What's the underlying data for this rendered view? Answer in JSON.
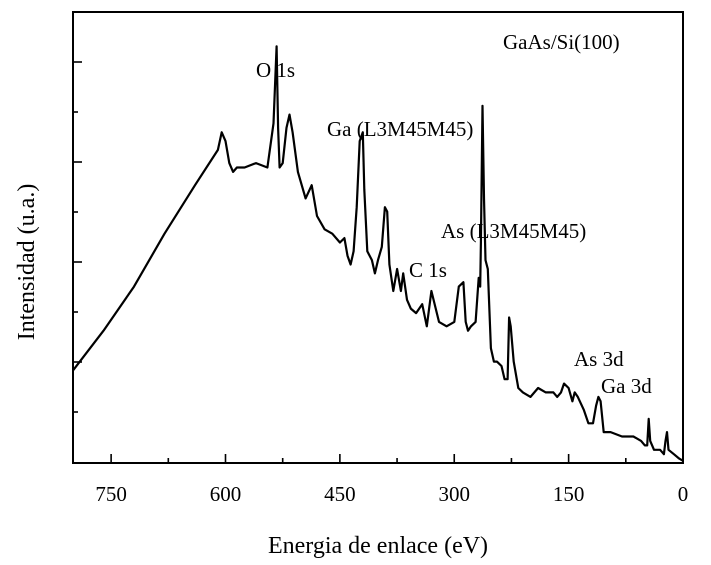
{
  "chart_data": {
    "type": "line",
    "title": "",
    "xlabel": "Energia de enlace (eV)",
    "ylabel": "Intensidad (u.a.)",
    "xlim": [
      800,
      0
    ],
    "ylim": [
      0,
      1
    ],
    "x_reversed": true,
    "x_ticks": [
      "750",
      "600",
      "450",
      "300",
      "150",
      "0"
    ],
    "y_tick_labels_shown": false,
    "sample_label": "GaAs/Si(100)",
    "peak_labels": {
      "O": "O 1s",
      "GaAuger": "Ga (L3M45M45)",
      "C": "C 1s",
      "AsAuger": "As (L3M45M45)",
      "As3d": "As 3d",
      "Ga3d": "Ga 3d"
    },
    "series": [
      {
        "x": [
          800,
          760,
          720,
          680,
          640,
          610,
          605,
          600,
          595,
          590,
          585,
          575,
          560,
          545,
          537,
          533,
          531,
          529,
          525,
          520,
          516,
          512,
          505,
          495,
          487,
          480,
          470,
          460,
          450,
          444,
          440,
          436,
          432,
          428,
          424,
          420,
          418,
          414,
          408,
          404,
          400,
          395,
          391,
          388,
          385,
          380,
          375,
          370,
          367,
          362,
          357,
          350,
          342,
          336,
          330,
          320,
          310,
          300,
          294,
          288,
          285,
          282,
          278,
          272,
          268,
          266,
          265,
          263,
          261,
          259,
          256,
          252,
          248,
          244,
          238,
          234,
          230,
          228,
          226,
          222,
          216,
          210,
          200,
          190,
          180,
          170,
          165,
          160,
          156,
          150,
          145,
          142,
          138,
          130,
          124,
          118,
          114,
          111,
          108,
          104,
          95,
          80,
          65,
          55,
          50,
          47,
          45,
          43,
          38,
          30,
          25,
          23,
          21,
          19,
          12,
          5,
          0
        ],
        "y": [
          0.21,
          0.3,
          0.4,
          0.52,
          0.63,
          0.71,
          0.75,
          0.73,
          0.68,
          0.66,
          0.67,
          0.67,
          0.68,
          0.67,
          0.77,
          0.945,
          0.76,
          0.67,
          0.68,
          0.76,
          0.79,
          0.75,
          0.66,
          0.6,
          0.63,
          0.56,
          0.53,
          0.52,
          0.5,
          0.51,
          0.47,
          0.45,
          0.48,
          0.58,
          0.73,
          0.75,
          0.62,
          0.48,
          0.46,
          0.43,
          0.46,
          0.49,
          0.58,
          0.57,
          0.45,
          0.39,
          0.44,
          0.39,
          0.43,
          0.37,
          0.35,
          0.34,
          0.36,
          0.31,
          0.39,
          0.32,
          0.31,
          0.32,
          0.4,
          0.41,
          0.32,
          0.3,
          0.31,
          0.32,
          0.42,
          0.4,
          0.5,
          0.81,
          0.6,
          0.46,
          0.44,
          0.26,
          0.23,
          0.23,
          0.22,
          0.19,
          0.19,
          0.33,
          0.31,
          0.23,
          0.17,
          0.16,
          0.15,
          0.17,
          0.16,
          0.16,
          0.15,
          0.16,
          0.18,
          0.17,
          0.14,
          0.16,
          0.15,
          0.12,
          0.09,
          0.09,
          0.13,
          0.15,
          0.14,
          0.07,
          0.07,
          0.06,
          0.06,
          0.05,
          0.04,
          0.04,
          0.1,
          0.05,
          0.03,
          0.03,
          0.02,
          0.05,
          0.07,
          0.03,
          0.02,
          0.01,
          0.005
        ]
      }
    ]
  }
}
